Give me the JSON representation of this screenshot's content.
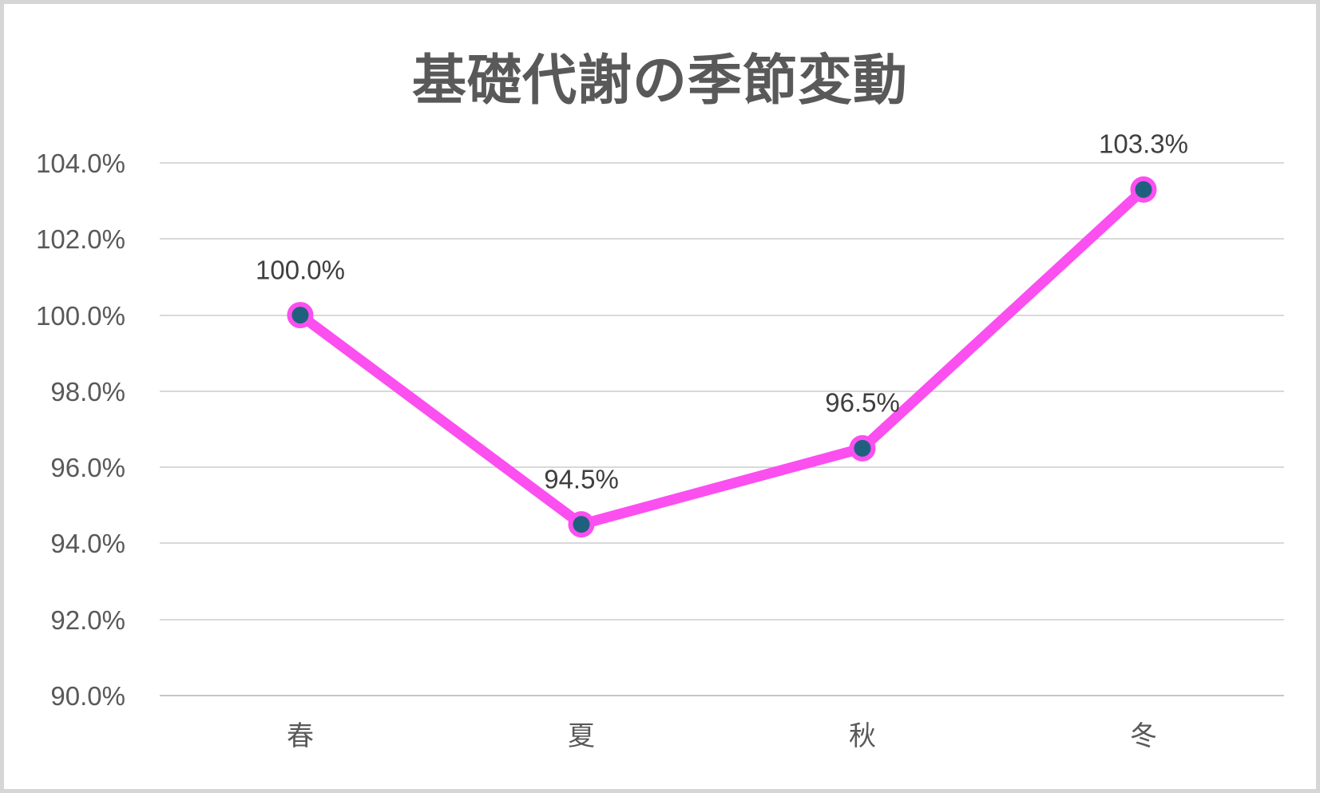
{
  "window": {
    "background_color": "#ffffff",
    "border_color": "#d6d6d6"
  },
  "chart_data": {
    "type": "line",
    "title": "基礎代謝の季節変動",
    "categories": [
      "春",
      "夏",
      "秋",
      "冬"
    ],
    "values": [
      100.0,
      94.5,
      96.5,
      103.3
    ],
    "data_labels": [
      "100.0%",
      "94.5%",
      "96.5%",
      "103.3%"
    ],
    "y_ticks": [
      {
        "value": 90,
        "label": "90.0%"
      },
      {
        "value": 92,
        "label": "92.0%"
      },
      {
        "value": 94,
        "label": "94.0%"
      },
      {
        "value": 96,
        "label": "96.0%"
      },
      {
        "value": 98,
        "label": "98.0%"
      },
      {
        "value": 100,
        "label": "100.0%"
      },
      {
        "value": 102,
        "label": "102.0%"
      },
      {
        "value": 104,
        "label": "104.0%"
      }
    ],
    "ylim": [
      90,
      104
    ],
    "xlabel": "",
    "ylabel": "",
    "grid": true,
    "legend": "none",
    "colors": {
      "line": "#fb4ff0",
      "marker_fill": "#20607f",
      "marker_ring": "#fb4ff0",
      "gridline": "#d9d9d9",
      "axis_line": "#c6c6c6",
      "title_text": "#595959",
      "tick_text": "#595959",
      "data_label_text": "#3f3f3f"
    }
  }
}
